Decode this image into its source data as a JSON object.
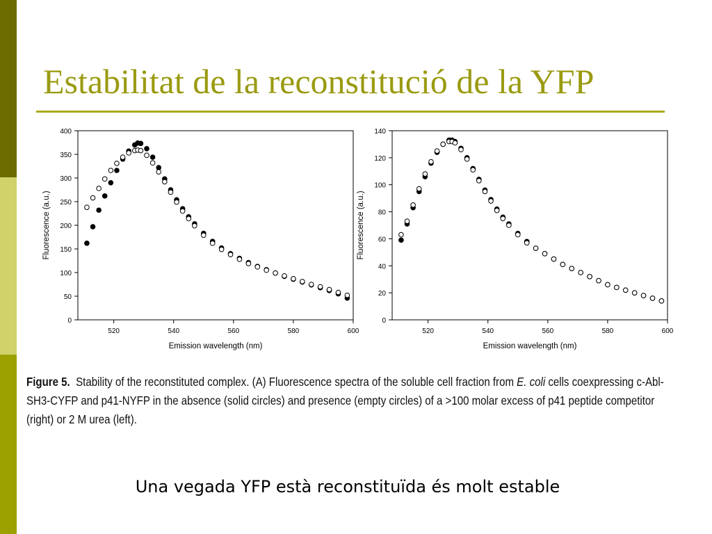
{
  "slide": {
    "title": "Estabilitat de la reconstitució de la YFP",
    "footer": "Una vegada YFP està reconstituïda és molt estable",
    "colors": {
      "side_dark": "#6b6b00",
      "side_light": "#cfd36a",
      "side_mid": "#9ca100",
      "title": "#9a9a10",
      "rule": "#a9a91a"
    }
  },
  "caption": {
    "label": "Figure 5.",
    "part1": "Stability of the reconstituted complex. (A) Fluorescence spectra of the soluble cell fraction from ",
    "organism": "E. coli",
    "part2": " cells coexpressing c-Abl-SH3-CYFP and p41-NYFP in the absence (solid circles) and presence (empty circles) of a >100 molar excess of p41 peptide competitor (right) or 2 M urea (left)."
  },
  "chart_data": [
    {
      "type": "scatter",
      "title": "",
      "xlabel": "Emission wavelength (nm)",
      "ylabel": "Fluorescence (a.u.)",
      "xlim": [
        508,
        600
      ],
      "ylim": [
        0,
        400
      ],
      "xticks": [
        520,
        540,
        560,
        580,
        600
      ],
      "yticks": [
        0,
        50,
        100,
        150,
        200,
        250,
        300,
        350,
        400
      ],
      "grid": false,
      "series": [
        {
          "style": "solid",
          "x": [
            511,
            513,
            515,
            517,
            519,
            521,
            523,
            525,
            527,
            528,
            529,
            531,
            533,
            535,
            537,
            539,
            541,
            543,
            545,
            547,
            550,
            553,
            556,
            559,
            562,
            565,
            568,
            571,
            574,
            577,
            580,
            583,
            586,
            589,
            592,
            595,
            598
          ],
          "y": [
            162,
            197,
            232,
            262,
            290,
            316,
            340,
            357,
            370,
            374,
            373,
            362,
            344,
            322,
            298,
            275,
            254,
            235,
            218,
            203,
            183,
            166,
            152,
            140,
            130,
            121,
            113,
            106,
            99,
            92,
            86,
            80,
            74,
            68,
            62,
            55,
            46
          ]
        },
        {
          "style": "open",
          "x": [
            511,
            513,
            515,
            517,
            519,
            521,
            523,
            525,
            527,
            528,
            529,
            531,
            533,
            535,
            537,
            539,
            541,
            543,
            545,
            547,
            550,
            553,
            556,
            559,
            562,
            565,
            568,
            571,
            574,
            577,
            580,
            583,
            586,
            589,
            592,
            595,
            598
          ],
          "y": [
            238,
            258,
            278,
            298,
            316,
            331,
            344,
            353,
            358,
            359,
            358,
            348,
            332,
            313,
            292,
            270,
            249,
            230,
            214,
            199,
            179,
            162,
            149,
            138,
            128,
            119,
            112,
            105,
            99,
            93,
            87,
            81,
            75,
            70,
            64,
            58,
            52
          ]
        }
      ]
    },
    {
      "type": "scatter",
      "title": "",
      "xlabel": "Emission wavelength (nm)",
      "ylabel": "Fluorescence (a.u.)",
      "xlim": [
        508,
        600
      ],
      "ylim": [
        0,
        140
      ],
      "xticks": [
        520,
        540,
        560,
        580,
        600
      ],
      "yticks": [
        0,
        20,
        40,
        60,
        80,
        100,
        120,
        140
      ],
      "grid": false,
      "series": [
        {
          "style": "solid",
          "x": [
            511,
            513,
            515,
            517,
            519,
            521,
            523,
            525,
            527,
            528,
            529,
            531,
            533,
            535,
            537,
            539,
            541,
            543,
            545,
            547,
            550,
            553,
            556,
            559,
            562,
            565,
            568,
            571,
            574,
            577,
            580,
            583,
            586,
            589,
            592,
            595,
            598
          ],
          "y": [
            59,
            71,
            83,
            95,
            106,
            116,
            124,
            130,
            133,
            133,
            132,
            127,
            120,
            112,
            104,
            96,
            89,
            82,
            76,
            71,
            64,
            58,
            53,
            49,
            45,
            41,
            38,
            35,
            32,
            29,
            26,
            24,
            22,
            20,
            18,
            16,
            14
          ]
        },
        {
          "style": "open",
          "x": [
            511,
            513,
            515,
            517,
            519,
            521,
            523,
            525,
            527,
            528,
            529,
            531,
            533,
            535,
            537,
            539,
            541,
            543,
            545,
            547,
            550,
            553,
            556,
            559,
            562,
            565,
            568,
            571,
            574,
            577,
            580,
            583,
            586,
            589,
            592,
            595,
            598
          ],
          "y": [
            63,
            73,
            85,
            97,
            108,
            117,
            125,
            130,
            132,
            132,
            131,
            126,
            119,
            111,
            103,
            95,
            88,
            81,
            75,
            70,
            63,
            57,
            53,
            49,
            45,
            41,
            38,
            35,
            32,
            29,
            26,
            24,
            22,
            20,
            18,
            16,
            14
          ]
        }
      ]
    }
  ]
}
